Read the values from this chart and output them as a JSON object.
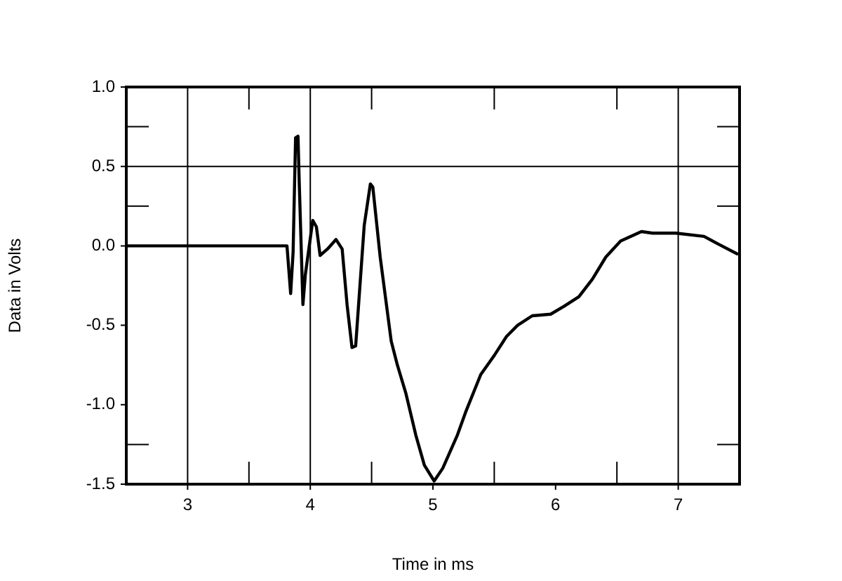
{
  "chart_data": {
    "type": "line",
    "xlabel": "Time in ms",
    "ylabel": "Data in Volts",
    "xlim": [
      2.5,
      7.5
    ],
    "xticks": [
      3,
      {
        "value": 3.5,
        "label": null
      },
      4,
      {
        "value": 4.5,
        "label": null
      },
      5,
      {
        "value": 5.5,
        "label": null
      },
      6,
      {
        "value": 6.5,
        "label": null
      },
      7
    ],
    "ylim": [
      -1.5,
      1.0
    ],
    "yticks": [
      {
        "value": -1.5,
        "label": "-1.5"
      },
      {
        "value": -1.25,
        "label": null
      },
      {
        "value": -1,
        "label": "-1.0"
      },
      {
        "value": -0.5,
        "label": "-0.5"
      },
      {
        "value": 0,
        "label": "0.0"
      },
      {
        "value": 0.25,
        "label": null
      },
      {
        "value": 0.5,
        "label": "0.5"
      },
      {
        "value": 0.75,
        "label": null
      },
      {
        "value": 1,
        "label": "1.0"
      }
    ],
    "grid": false,
    "legend": false,
    "marker": "none",
    "line_style": "solid",
    "ref_lines": [
      {
        "axis": "x",
        "value": 3,
        "color": "#000000"
      },
      {
        "axis": "x",
        "value": 4,
        "color": "#000000"
      },
      {
        "axis": "x",
        "value": 7,
        "color": "#000000"
      },
      {
        "axis": "y",
        "value": 0.5,
        "color": "#000000"
      }
    ],
    "series": [
      {
        "color": "#000000",
        "x": [
          2.5,
          3.81,
          3.84,
          3.86,
          3.88,
          3.9,
          3.91,
          3.94,
          3.96,
          4.02,
          4.05,
          4.08,
          4.14,
          4.21,
          4.26,
          4.3,
          4.34,
          4.37,
          4.44,
          4.49,
          4.51,
          4.57,
          4.66,
          4.71,
          4.78,
          4.86,
          4.93,
          5.01,
          5.08,
          5.2,
          5.27,
          5.39,
          5.5,
          5.6,
          5.69,
          5.81,
          5.96,
          6.07,
          6.19,
          6.3,
          6.41,
          6.53,
          6.7,
          6.79,
          6.98,
          7.21,
          7.33,
          7.48
        ],
        "values": [
          0,
          0,
          -0.3,
          -0.04,
          0.68,
          0.69,
          0.4,
          -0.37,
          -0.18,
          0.16,
          0.12,
          -0.06,
          -0.02,
          0.04,
          -0.02,
          -0.37,
          -0.64,
          -0.63,
          0.13,
          0.39,
          0.37,
          -0.07,
          -0.6,
          -0.75,
          -0.93,
          -1.19,
          -1.38,
          -1.48,
          -1.4,
          -1.19,
          -1.04,
          -0.81,
          -0.69,
          -0.57,
          -0.5,
          -0.44,
          -0.43,
          -0.38,
          -0.32,
          -0.21,
          -0.07,
          0.03,
          0.09,
          0.08,
          0.08,
          0.06,
          0.01,
          -0.05
        ]
      }
    ]
  }
}
